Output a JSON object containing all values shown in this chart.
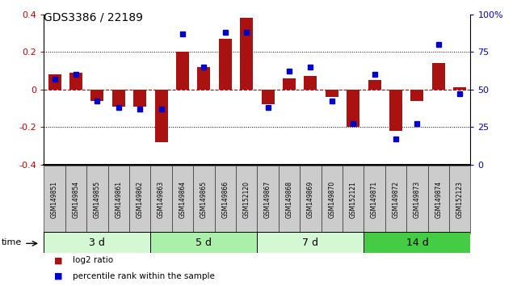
{
  "title": "GDS3386 / 22189",
  "samples": [
    "GSM149851",
    "GSM149854",
    "GSM149855",
    "GSM149861",
    "GSM149862",
    "GSM149863",
    "GSM149864",
    "GSM149865",
    "GSM149866",
    "GSM152120",
    "GSM149867",
    "GSM149868",
    "GSM149869",
    "GSM149870",
    "GSM152121",
    "GSM149871",
    "GSM149872",
    "GSM149873",
    "GSM149874",
    "GSM152123"
  ],
  "log2_ratio": [
    0.08,
    0.09,
    -0.06,
    -0.09,
    -0.09,
    -0.28,
    0.2,
    0.12,
    0.27,
    0.38,
    -0.08,
    0.06,
    0.07,
    -0.04,
    -0.2,
    0.05,
    -0.22,
    -0.06,
    0.14,
    0.01
  ],
  "percentile": [
    57,
    60,
    42,
    38,
    37,
    37,
    87,
    65,
    88,
    88,
    38,
    62,
    65,
    42,
    27,
    60,
    17,
    27,
    80,
    47
  ],
  "groups": [
    {
      "label": "3 d",
      "start": 0,
      "end": 5,
      "color": "#d4f7d4"
    },
    {
      "label": "5 d",
      "start": 5,
      "end": 10,
      "color": "#aaf0aa"
    },
    {
      "label": "7 d",
      "start": 10,
      "end": 15,
      "color": "#d4f7d4"
    },
    {
      "label": "14 d",
      "start": 15,
      "end": 20,
      "color": "#44cc44"
    }
  ],
  "bar_color": "#aa1111",
  "dot_color": "#0000cc",
  "zero_line_color": "#cc0000",
  "ylim": [
    -0.4,
    0.4
  ],
  "y2lim": [
    0,
    100
  ],
  "yticks": [
    -0.4,
    -0.2,
    0.0,
    0.2,
    0.4
  ],
  "y2ticks": [
    0,
    25,
    50,
    75,
    100
  ],
  "dotted_lines": [
    -0.2,
    0.2
  ],
  "ylabel_left_color": "#cc0000",
  "ylabel_right_color": "#0000cc",
  "legend_items": [
    {
      "label": "log2 ratio",
      "color": "#aa1111"
    },
    {
      "label": "percentile rank within the sample",
      "color": "#0000cc"
    }
  ],
  "sample_box_color": "#cccccc",
  "sample_box_edge": "#333333"
}
